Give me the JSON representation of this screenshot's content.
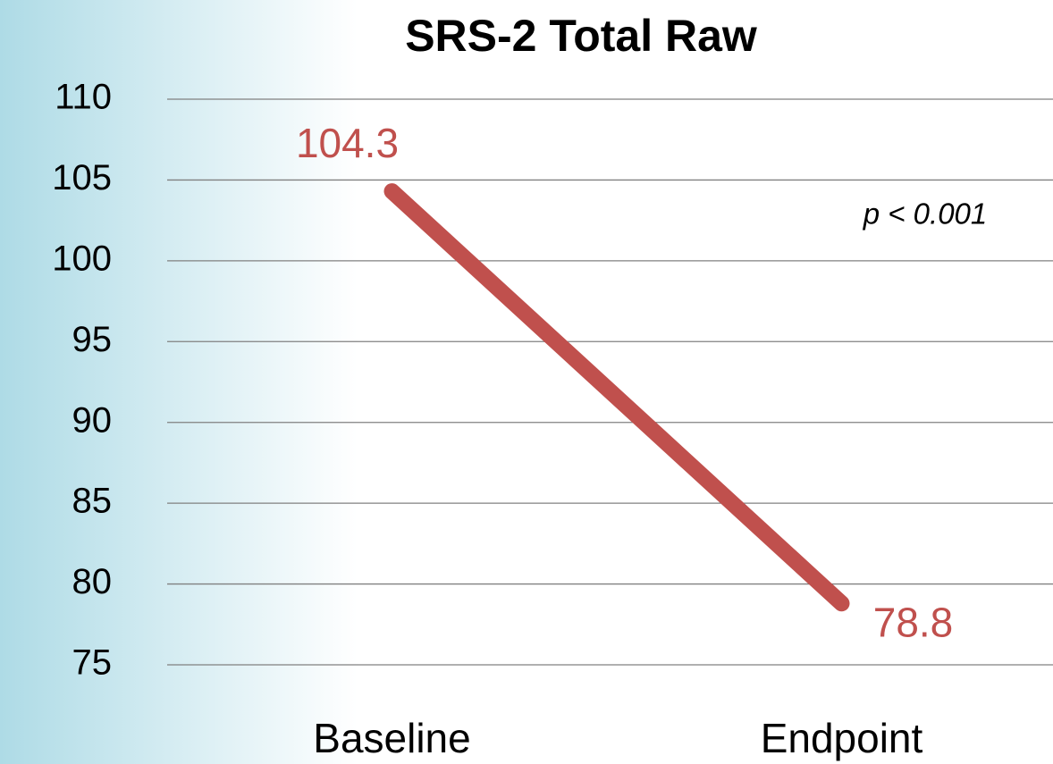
{
  "chart_data": {
    "type": "line",
    "title": "SRS-2 Total Raw",
    "categories": [
      "Baseline",
      "Endpoint"
    ],
    "values": [
      104.3,
      78.8
    ],
    "color": "#c0504d",
    "ylim": [
      75,
      110
    ],
    "yticks": [
      75,
      80,
      85,
      90,
      95,
      100,
      105,
      110
    ],
    "grid": true,
    "annotation": "p < 0.001"
  }
}
